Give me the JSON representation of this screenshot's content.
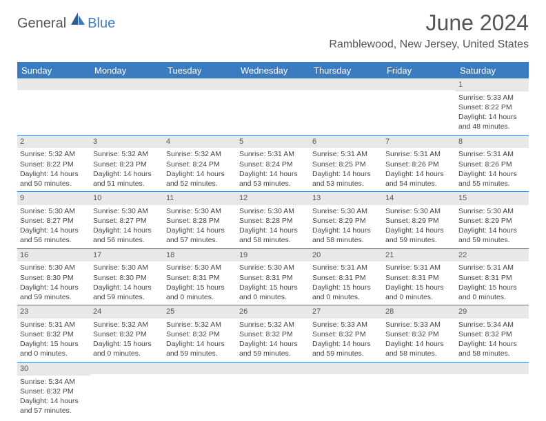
{
  "logo": {
    "text_general": "General",
    "text_blue": "Blue"
  },
  "title": "June 2024",
  "location": "Ramblewood, New Jersey, United States",
  "day_headers": [
    "Sunday",
    "Monday",
    "Tuesday",
    "Wednesday",
    "Thursday",
    "Friday",
    "Saturday"
  ],
  "colors": {
    "header_bg": "#3b7bbf",
    "header_fg": "#ffffff",
    "daynum_bg": "#e8e8e8",
    "border": "#3b7bbf",
    "text": "#444444",
    "title_color": "#555555"
  },
  "typography": {
    "title_fontsize": 32,
    "location_fontsize": 16,
    "header_fontsize": 13,
    "cell_fontsize": 10.5
  },
  "weeks": [
    [
      null,
      null,
      null,
      null,
      null,
      null,
      {
        "n": "1",
        "sunrise": "5:33 AM",
        "sunset": "8:22 PM",
        "daylight": "14 hours and 48 minutes."
      }
    ],
    [
      {
        "n": "2",
        "sunrise": "5:32 AM",
        "sunset": "8:22 PM",
        "daylight": "14 hours and 50 minutes."
      },
      {
        "n": "3",
        "sunrise": "5:32 AM",
        "sunset": "8:23 PM",
        "daylight": "14 hours and 51 minutes."
      },
      {
        "n": "4",
        "sunrise": "5:32 AM",
        "sunset": "8:24 PM",
        "daylight": "14 hours and 52 minutes."
      },
      {
        "n": "5",
        "sunrise": "5:31 AM",
        "sunset": "8:24 PM",
        "daylight": "14 hours and 53 minutes."
      },
      {
        "n": "6",
        "sunrise": "5:31 AM",
        "sunset": "8:25 PM",
        "daylight": "14 hours and 53 minutes."
      },
      {
        "n": "7",
        "sunrise": "5:31 AM",
        "sunset": "8:26 PM",
        "daylight": "14 hours and 54 minutes."
      },
      {
        "n": "8",
        "sunrise": "5:31 AM",
        "sunset": "8:26 PM",
        "daylight": "14 hours and 55 minutes."
      }
    ],
    [
      {
        "n": "9",
        "sunrise": "5:30 AM",
        "sunset": "8:27 PM",
        "daylight": "14 hours and 56 minutes."
      },
      {
        "n": "10",
        "sunrise": "5:30 AM",
        "sunset": "8:27 PM",
        "daylight": "14 hours and 56 minutes."
      },
      {
        "n": "11",
        "sunrise": "5:30 AM",
        "sunset": "8:28 PM",
        "daylight": "14 hours and 57 minutes."
      },
      {
        "n": "12",
        "sunrise": "5:30 AM",
        "sunset": "8:28 PM",
        "daylight": "14 hours and 58 minutes."
      },
      {
        "n": "13",
        "sunrise": "5:30 AM",
        "sunset": "8:29 PM",
        "daylight": "14 hours and 58 minutes."
      },
      {
        "n": "14",
        "sunrise": "5:30 AM",
        "sunset": "8:29 PM",
        "daylight": "14 hours and 59 minutes."
      },
      {
        "n": "15",
        "sunrise": "5:30 AM",
        "sunset": "8:29 PM",
        "daylight": "14 hours and 59 minutes."
      }
    ],
    [
      {
        "n": "16",
        "sunrise": "5:30 AM",
        "sunset": "8:30 PM",
        "daylight": "14 hours and 59 minutes."
      },
      {
        "n": "17",
        "sunrise": "5:30 AM",
        "sunset": "8:30 PM",
        "daylight": "14 hours and 59 minutes."
      },
      {
        "n": "18",
        "sunrise": "5:30 AM",
        "sunset": "8:31 PM",
        "daylight": "15 hours and 0 minutes."
      },
      {
        "n": "19",
        "sunrise": "5:30 AM",
        "sunset": "8:31 PM",
        "daylight": "15 hours and 0 minutes."
      },
      {
        "n": "20",
        "sunrise": "5:31 AM",
        "sunset": "8:31 PM",
        "daylight": "15 hours and 0 minutes."
      },
      {
        "n": "21",
        "sunrise": "5:31 AM",
        "sunset": "8:31 PM",
        "daylight": "15 hours and 0 minutes."
      },
      {
        "n": "22",
        "sunrise": "5:31 AM",
        "sunset": "8:31 PM",
        "daylight": "15 hours and 0 minutes."
      }
    ],
    [
      {
        "n": "23",
        "sunrise": "5:31 AM",
        "sunset": "8:32 PM",
        "daylight": "15 hours and 0 minutes."
      },
      {
        "n": "24",
        "sunrise": "5:32 AM",
        "sunset": "8:32 PM",
        "daylight": "15 hours and 0 minutes."
      },
      {
        "n": "25",
        "sunrise": "5:32 AM",
        "sunset": "8:32 PM",
        "daylight": "14 hours and 59 minutes."
      },
      {
        "n": "26",
        "sunrise": "5:32 AM",
        "sunset": "8:32 PM",
        "daylight": "14 hours and 59 minutes."
      },
      {
        "n": "27",
        "sunrise": "5:33 AM",
        "sunset": "8:32 PM",
        "daylight": "14 hours and 59 minutes."
      },
      {
        "n": "28",
        "sunrise": "5:33 AM",
        "sunset": "8:32 PM",
        "daylight": "14 hours and 58 minutes."
      },
      {
        "n": "29",
        "sunrise": "5:34 AM",
        "sunset": "8:32 PM",
        "daylight": "14 hours and 58 minutes."
      }
    ],
    [
      {
        "n": "30",
        "sunrise": "5:34 AM",
        "sunset": "8:32 PM",
        "daylight": "14 hours and 57 minutes."
      },
      null,
      null,
      null,
      null,
      null,
      null
    ]
  ],
  "labels": {
    "sunrise_prefix": "Sunrise: ",
    "sunset_prefix": "Sunset: ",
    "daylight_prefix": "Daylight: "
  }
}
